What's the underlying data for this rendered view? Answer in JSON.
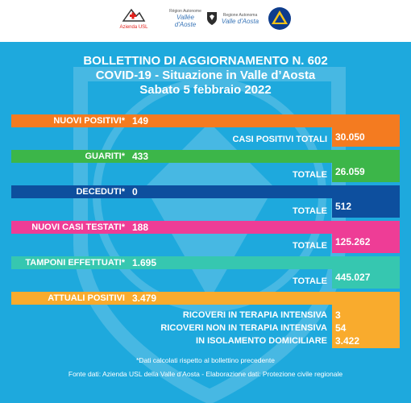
{
  "header": {
    "logos": [
      {
        "icon": "usl-logo",
        "top": "",
        "bottom": "Azienda USL"
      },
      {
        "icon": "region-logo",
        "top": "Région Autonome",
        "bottom": "Vallée d'Aoste"
      },
      {
        "icon": "region-shield-icon",
        "top": "",
        "bottom": ""
      },
      {
        "icon": "region-logo",
        "top": "Regione Autonoma",
        "bottom": "Valle d'Aosta"
      },
      {
        "icon": "protezione-civile-logo",
        "top": "",
        "bottom": ""
      }
    ]
  },
  "title": {
    "line1": "BOLLETTINO DI AGGIORNAMENTO N. 602",
    "line2": "COVID-19 - Situazione in Valle d’Aosta",
    "line3": "Sabato 5 febbraio 2022"
  },
  "rows": {
    "nuovi_positivi": {
      "label": "NUOVI POSITIVI*",
      "value": "149",
      "total_label": "CASI POSITIVI TOTALI",
      "total_value": "30.050",
      "color": "#f47b20"
    },
    "guariti": {
      "label": "GUARITI*",
      "value": "433",
      "total_label": "TOTALE",
      "total_value": "26.059",
      "color": "#3cb649"
    },
    "deceduti": {
      "label": "DECEDUTI*",
      "value": "0",
      "total_label": "TOTALE",
      "total_value": "512",
      "color": "#0d4f9e"
    },
    "nuovi_casi_testati": {
      "label": "NUOVI CASI TESTATI*",
      "value": "188",
      "total_label": "TOTALE",
      "total_value": "125.262",
      "color": "#ee3d96"
    },
    "tamponi": {
      "label": "TAMPONI EFFETTUATI*",
      "value": "1.695",
      "total_label": "TOTALE",
      "total_value": "445.027",
      "color": "#36c7b0"
    },
    "attuali_positivi": {
      "label": "ATTUALI POSITIVI",
      "value": "3.479",
      "color": "#f9ab2d"
    }
  },
  "ricoveri": {
    "terapia_intensiva_label": "RICOVERI IN TERAPIA INTENSIVA",
    "terapia_intensiva_value": "3",
    "non_intensiva_label": "RICOVERI NON IN TERAPIA INTENSIVA",
    "non_intensiva_value": "54",
    "isolamento_label": "IN ISOLAMENTO DOMICILIARE",
    "isolamento_value": "3.422"
  },
  "notes": {
    "asterisk": "*Dati calcolati rispetto al bollettino precedente",
    "source": "Fonte dati: Azienda USL della Valle d’Aosta - Elaborazione dati: Protezione civile regionale"
  }
}
